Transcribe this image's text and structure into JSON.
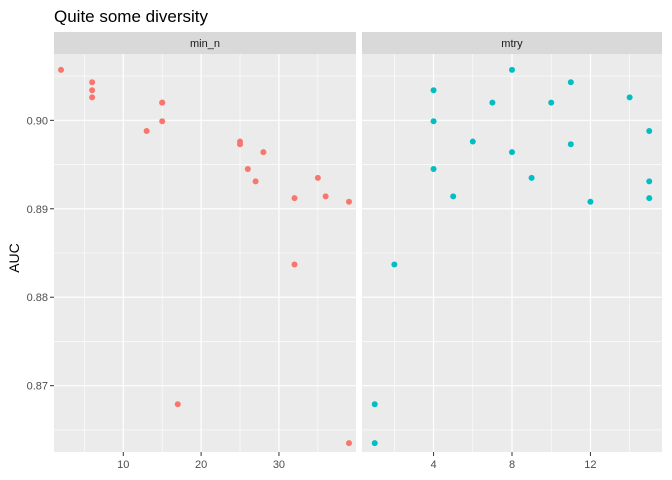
{
  "chart_data": {
    "type": "scatter",
    "title": "Quite some diversity",
    "xlabel": "",
    "ylabel": "AUC",
    "ylim": [
      0.8625,
      0.9075
    ],
    "y_ticks": [
      0.87,
      0.88,
      0.89,
      0.9
    ],
    "grid": true,
    "legend": "none",
    "facets": [
      {
        "name": "min_n",
        "color": "#F8766D",
        "xlim": [
          1.1,
          39.9
        ],
        "x_ticks": [
          10,
          20,
          30,
          40
        ],
        "points": [
          {
            "x": 2,
            "y": 0.9057
          },
          {
            "x": 6,
            "y": 0.9043
          },
          {
            "x": 6,
            "y": 0.9034
          },
          {
            "x": 6,
            "y": 0.9026
          },
          {
            "x": 13,
            "y": 0.8988
          },
          {
            "x": 15,
            "y": 0.902
          },
          {
            "x": 15,
            "y": 0.902
          },
          {
            "x": 15,
            "y": 0.8999
          },
          {
            "x": 17,
            "y": 0.8679
          },
          {
            "x": 25,
            "y": 0.8976
          },
          {
            "x": 25,
            "y": 0.8973
          },
          {
            "x": 26,
            "y": 0.8945
          },
          {
            "x": 27,
            "y": 0.8931
          },
          {
            "x": 28,
            "y": 0.8964
          },
          {
            "x": 32,
            "y": 0.8912
          },
          {
            "x": 32,
            "y": 0.8837
          },
          {
            "x": 35,
            "y": 0.8935
          },
          {
            "x": 36,
            "y": 0.8914
          },
          {
            "x": 39,
            "y": 0.8908
          },
          {
            "x": 39,
            "y": 0.8635
          }
        ]
      },
      {
        "name": "mtry",
        "color": "#00BFC4",
        "xlim": [
          0.35,
          15.65
        ],
        "x_ticks": [
          4,
          8,
          12
        ],
        "points": [
          {
            "x": 1,
            "y": 0.8679
          },
          {
            "x": 1,
            "y": 0.8635
          },
          {
            "x": 2,
            "y": 0.8837
          },
          {
            "x": 4,
            "y": 0.9034
          },
          {
            "x": 4,
            "y": 0.8999
          },
          {
            "x": 4,
            "y": 0.8945
          },
          {
            "x": 5,
            "y": 0.8914
          },
          {
            "x": 6,
            "y": 0.8976
          },
          {
            "x": 7,
            "y": 0.902
          },
          {
            "x": 8,
            "y": 0.9057
          },
          {
            "x": 8,
            "y": 0.8964
          },
          {
            "x": 9,
            "y": 0.8935
          },
          {
            "x": 10,
            "y": 0.902
          },
          {
            "x": 11,
            "y": 0.9043
          },
          {
            "x": 11,
            "y": 0.8973
          },
          {
            "x": 12,
            "y": 0.8908
          },
          {
            "x": 14,
            "y": 0.9026
          },
          {
            "x": 15,
            "y": 0.8988
          },
          {
            "x": 15,
            "y": 0.8931
          },
          {
            "x": 15,
            "y": 0.8912
          }
        ]
      }
    ]
  }
}
